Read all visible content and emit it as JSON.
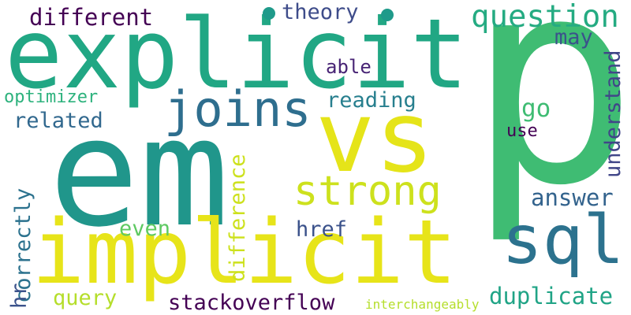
{
  "wordcloud": {
    "words": {
      "explicit": "explicit",
      "p": "p",
      "em": "em",
      "vs": "vs",
      "implicit": "implicit",
      "sql": "sql",
      "joins": "joins",
      "strong": "strong",
      "question": "question",
      "different": "different",
      "theory": "theory",
      "may": "may",
      "able": "able",
      "optimizer": "optimizer",
      "reading": "reading",
      "related": "related",
      "go": "go",
      "use": "use",
      "understand": "understand",
      "answer": "answer",
      "correctly": "correctly",
      "difference": "difference",
      "even": "even",
      "href": "href",
      "hr": "hr",
      "duplicate": "duplicate",
      "query": "query",
      "stackoverflow": "stackoverflow",
      "interchangeably": "interchangeably"
    },
    "colors": {
      "background": "#ffffff",
      "dark_purple": "#440154",
      "teal": "#21a784",
      "green": "#3fbc73",
      "yellow": "#e7e419",
      "blue": "#2c728e"
    }
  }
}
